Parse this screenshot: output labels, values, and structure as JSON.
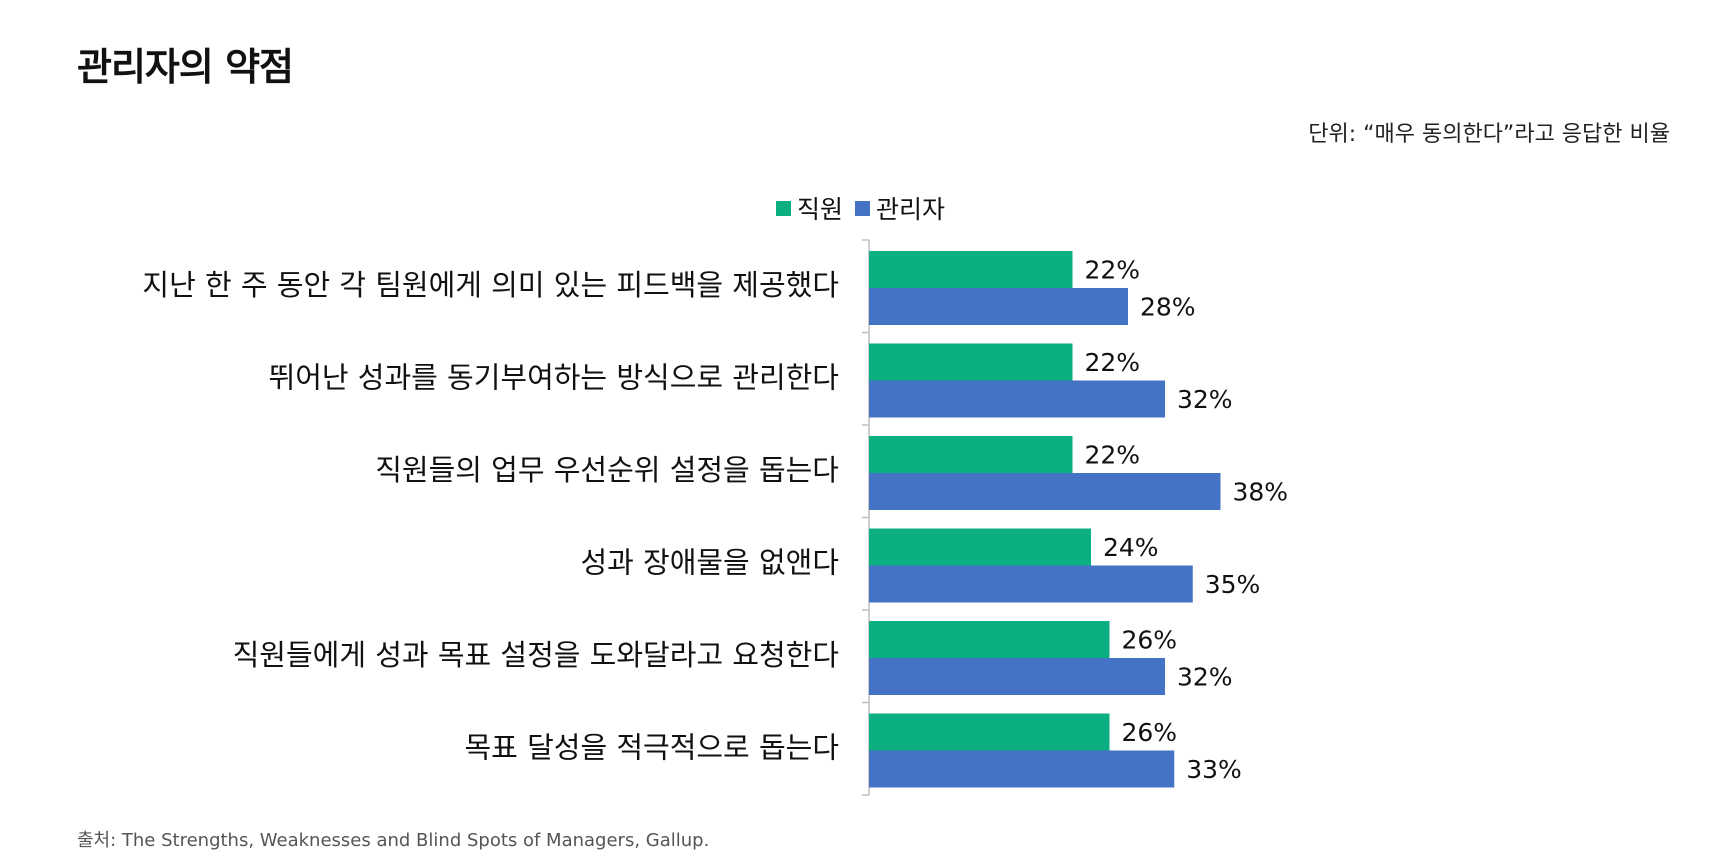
{
  "title": "관리자의 약점",
  "unit_note": "단위: “매우 동의한다”라고 응답한 비율",
  "source": "출처: The Strengths, Weaknesses and Blind Spots of Managers, Gallup.",
  "colors": {
    "employee": "#0BAF82",
    "manager": "#4472C4",
    "axis": "#BFBFBF"
  },
  "chart_data": {
    "type": "bar",
    "orientation": "horizontal",
    "categories": [
      "지난 한 주 동안 각 팀원에게 의미 있는 피드백을 제공했다",
      "뛰어난 성과를 동기부여하는 방식으로 관리한다",
      "직원들의 업무 우선순위 설정을 돕는다",
      "성과 장애물을 없앤다",
      "직원들에게 성과 목표 설정을 도와달라고 요청한다",
      "목표 달성을 적극적으로 돕는다"
    ],
    "series": [
      {
        "name": "직원",
        "values": [
          22,
          22,
          22,
          24,
          26,
          26
        ]
      },
      {
        "name": "관리자",
        "values": [
          28,
          32,
          38,
          35,
          32,
          33
        ]
      }
    ],
    "value_suffix": "%",
    "legend_position": "top",
    "grid": false
  }
}
